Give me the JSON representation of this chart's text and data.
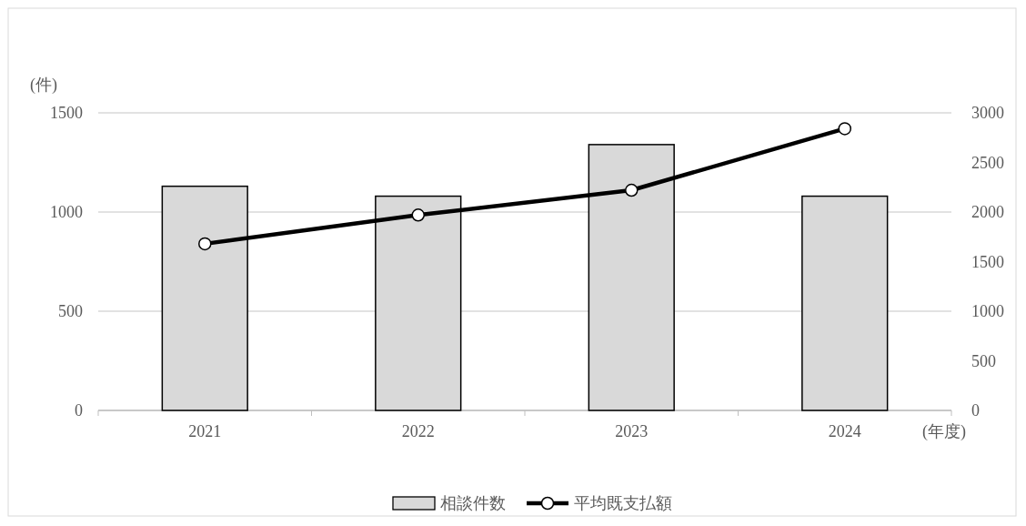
{
  "chart_data": {
    "type": "bar",
    "ylabel": "(件)",
    "xlabel": "(年度)",
    "categories": [
      "2021",
      "2022",
      "2023",
      "2024"
    ],
    "series": [
      {
        "name": "相談件数",
        "color": "#d9d9d9",
        "values": [
          1130,
          1080,
          1340,
          1080
        ]
      },
      {
        "name": "平均既支払額",
        "type": "line",
        "axis": "y2",
        "color": "#000000",
        "marker": "circle",
        "values": [
          1680,
          1970,
          2220,
          2840
        ]
      }
    ],
    "ylim": [
      0,
      1500
    ],
    "yticks": [
      0,
      500,
      1000,
      1500
    ],
    "y2lim": [
      0,
      3000
    ],
    "y2ticks": [
      0,
      500,
      1000,
      1500,
      2000,
      2500,
      3000
    ],
    "grid": "y",
    "legend": "bottom"
  }
}
